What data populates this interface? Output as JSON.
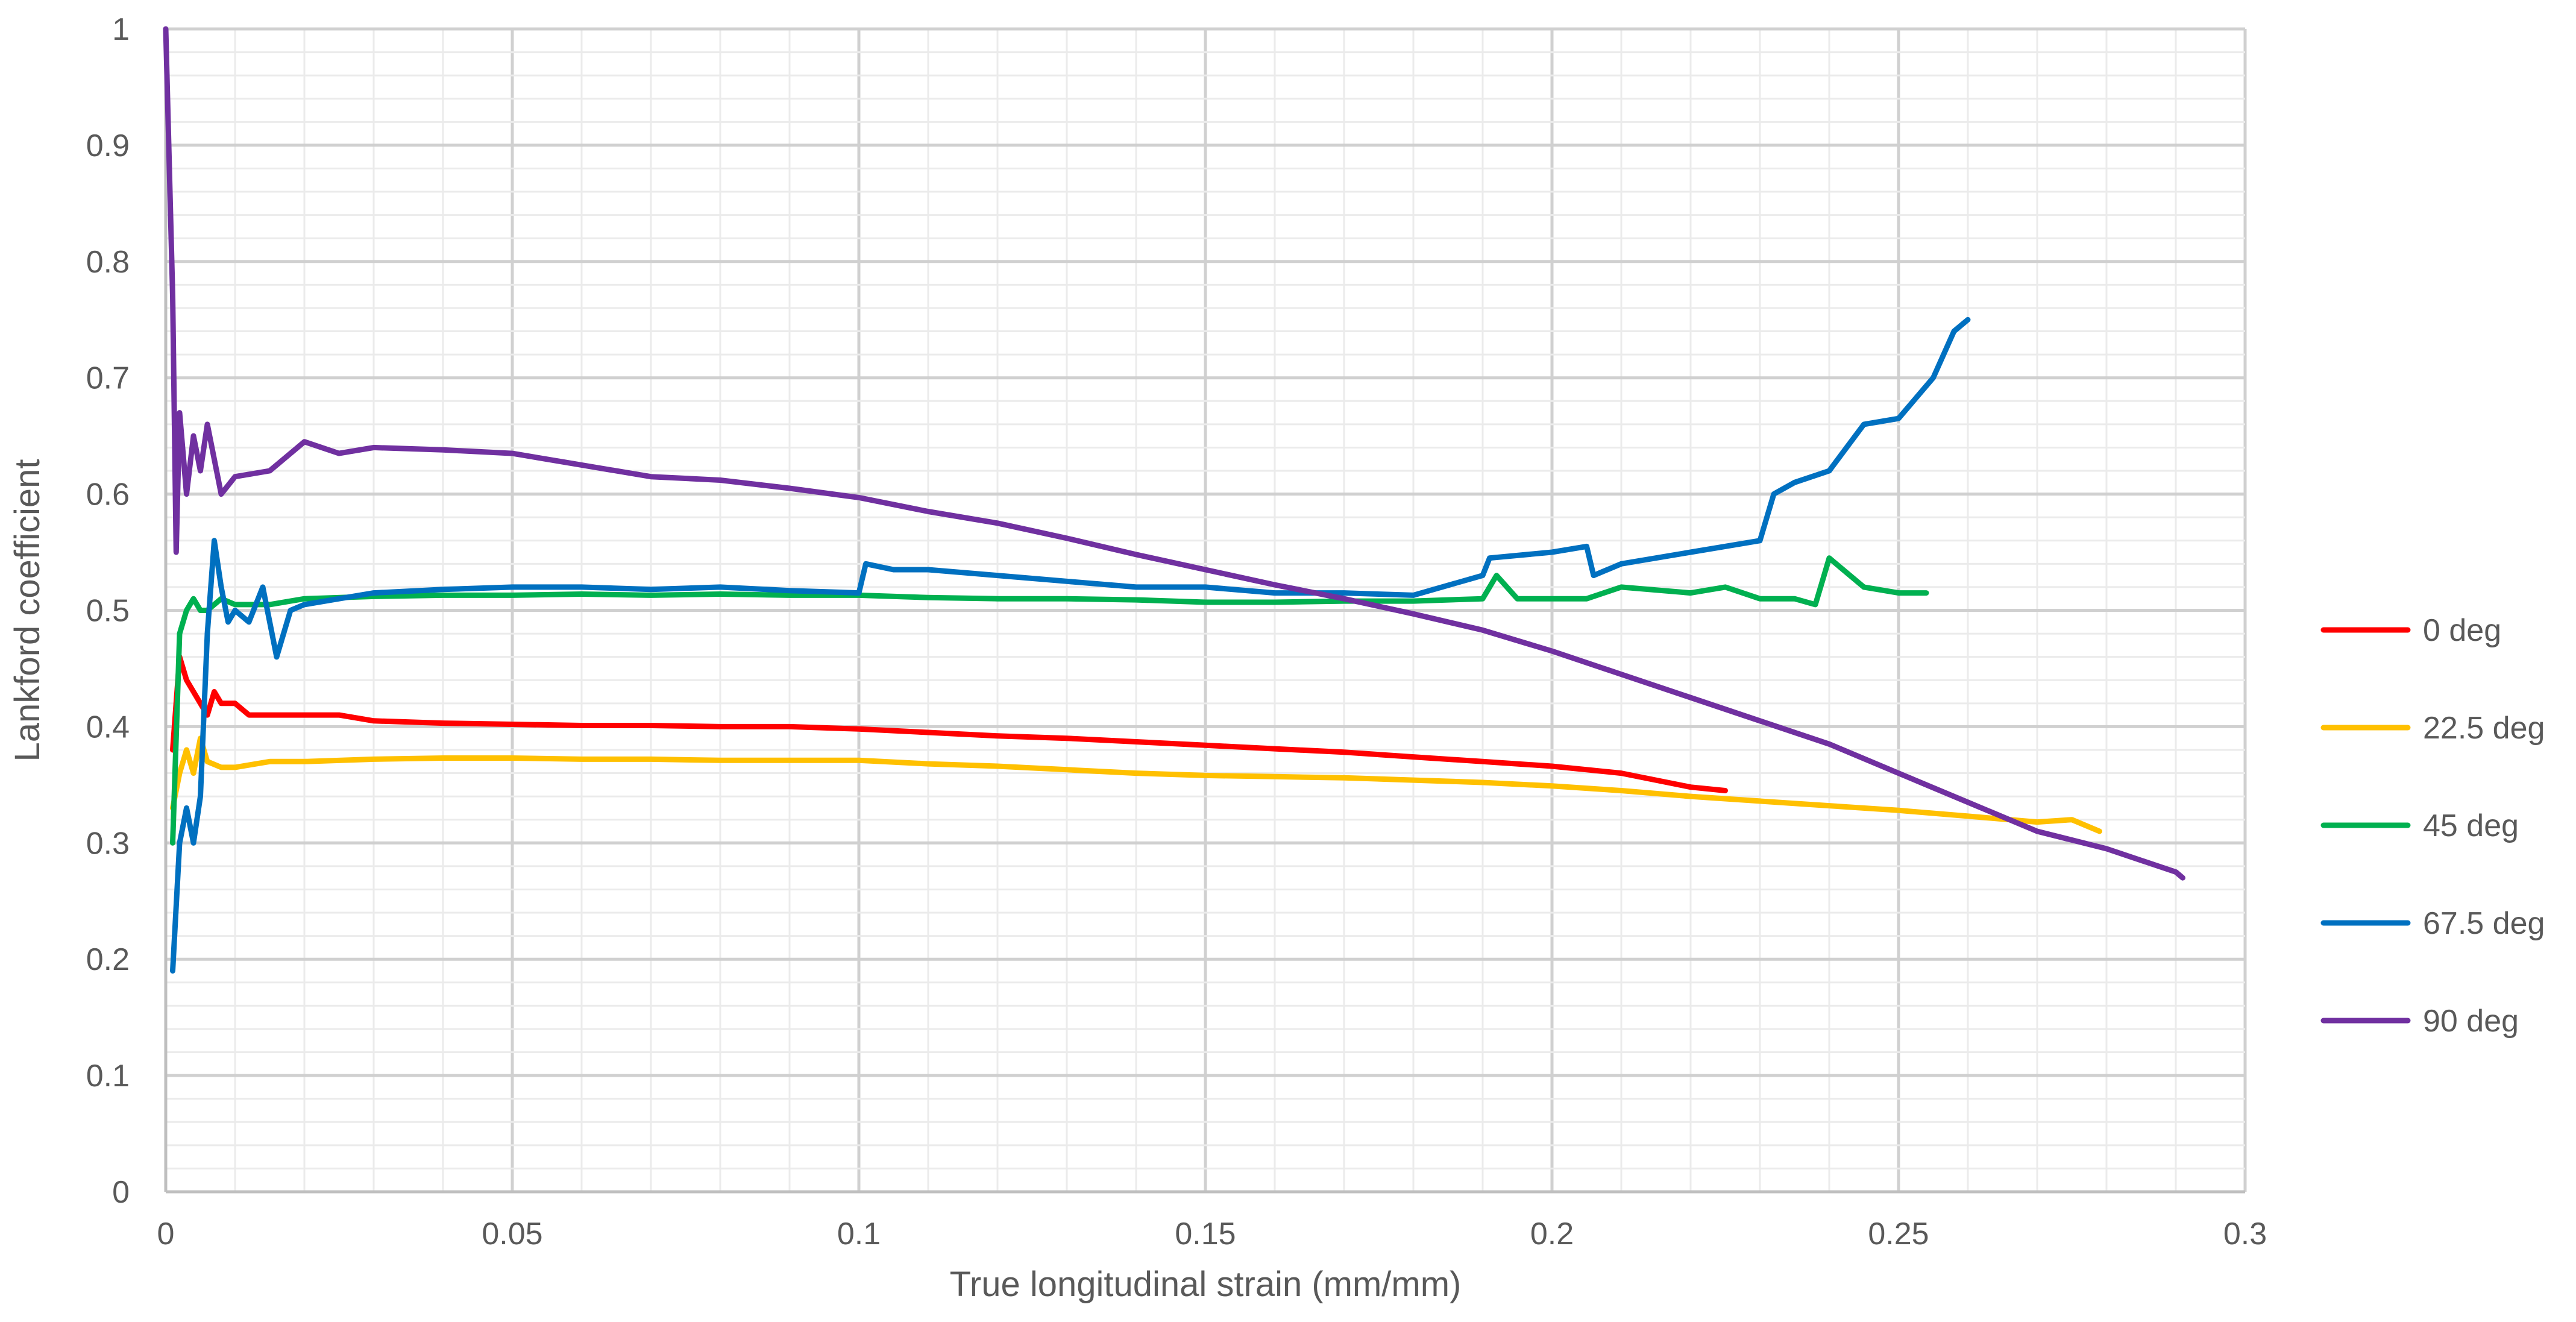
{
  "chart_data": {
    "type": "line",
    "title": "",
    "xlabel": "True longitudinal strain (mm/mm)",
    "ylabel": "Lankford coefficient",
    "xlim": [
      0,
      0.3
    ],
    "ylim": [
      0,
      1
    ],
    "x_ticks": [
      "0",
      "0.05",
      "0.1",
      "0.15",
      "0.2",
      "0.25",
      "0.3"
    ],
    "y_ticks": [
      "0",
      "0.1",
      "0.2",
      "0.3",
      "0.4",
      "0.5",
      "0.6",
      "0.7",
      "0.8",
      "0.9",
      "1"
    ],
    "grid": true,
    "legend_position": "right",
    "series": [
      {
        "name": "0 deg",
        "color": "#FF0000",
        "x": [
          0.001,
          0.002,
          0.003,
          0.004,
          0.005,
          0.006,
          0.007,
          0.008,
          0.01,
          0.012,
          0.015,
          0.02,
          0.025,
          0.03,
          0.04,
          0.05,
          0.06,
          0.07,
          0.08,
          0.09,
          0.1,
          0.11,
          0.12,
          0.13,
          0.14,
          0.15,
          0.16,
          0.17,
          0.18,
          0.19,
          0.2,
          0.21,
          0.22,
          0.225
        ],
        "y": [
          0.38,
          0.46,
          0.44,
          0.43,
          0.42,
          0.41,
          0.43,
          0.42,
          0.42,
          0.41,
          0.41,
          0.41,
          0.41,
          0.405,
          0.403,
          0.402,
          0.401,
          0.401,
          0.4,
          0.4,
          0.398,
          0.395,
          0.392,
          0.39,
          0.387,
          0.384,
          0.381,
          0.378,
          0.374,
          0.37,
          0.366,
          0.36,
          0.348,
          0.345
        ]
      },
      {
        "name": "22.5 deg",
        "color": "#FFC000",
        "x": [
          0.001,
          0.002,
          0.003,
          0.004,
          0.005,
          0.006,
          0.008,
          0.01,
          0.015,
          0.02,
          0.03,
          0.04,
          0.05,
          0.06,
          0.07,
          0.08,
          0.09,
          0.1,
          0.11,
          0.12,
          0.13,
          0.14,
          0.15,
          0.16,
          0.17,
          0.18,
          0.19,
          0.2,
          0.21,
          0.22,
          0.23,
          0.24,
          0.25,
          0.26,
          0.27,
          0.275,
          0.279
        ],
        "y": [
          0.33,
          0.36,
          0.38,
          0.36,
          0.39,
          0.37,
          0.365,
          0.365,
          0.37,
          0.37,
          0.372,
          0.373,
          0.373,
          0.372,
          0.372,
          0.371,
          0.371,
          0.371,
          0.368,
          0.366,
          0.363,
          0.36,
          0.358,
          0.357,
          0.356,
          0.354,
          0.352,
          0.349,
          0.345,
          0.34,
          0.336,
          0.332,
          0.328,
          0.323,
          0.318,
          0.32,
          0.31
        ]
      },
      {
        "name": "45 deg",
        "color": "#00B050",
        "x": [
          0.001,
          0.002,
          0.003,
          0.004,
          0.005,
          0.006,
          0.008,
          0.01,
          0.015,
          0.02,
          0.03,
          0.04,
          0.05,
          0.06,
          0.07,
          0.08,
          0.09,
          0.1,
          0.11,
          0.12,
          0.13,
          0.14,
          0.15,
          0.16,
          0.17,
          0.18,
          0.19,
          0.192,
          0.195,
          0.2,
          0.205,
          0.21,
          0.22,
          0.225,
          0.23,
          0.235,
          0.238,
          0.24,
          0.245,
          0.25,
          0.254
        ],
        "y": [
          0.3,
          0.48,
          0.5,
          0.51,
          0.5,
          0.5,
          0.51,
          0.505,
          0.505,
          0.51,
          0.512,
          0.513,
          0.513,
          0.514,
          0.513,
          0.514,
          0.513,
          0.513,
          0.511,
          0.51,
          0.51,
          0.509,
          0.507,
          0.507,
          0.508,
          0.508,
          0.51,
          0.53,
          0.51,
          0.51,
          0.51,
          0.52,
          0.515,
          0.52,
          0.51,
          0.51,
          0.505,
          0.545,
          0.52,
          0.515,
          0.515
        ]
      },
      {
        "name": "67.5 deg",
        "color": "#0070C0",
        "x": [
          0.001,
          0.002,
          0.003,
          0.004,
          0.005,
          0.006,
          0.007,
          0.008,
          0.009,
          0.01,
          0.012,
          0.014,
          0.016,
          0.018,
          0.02,
          0.025,
          0.03,
          0.04,
          0.05,
          0.06,
          0.07,
          0.08,
          0.09,
          0.1,
          0.101,
          0.105,
          0.11,
          0.12,
          0.13,
          0.14,
          0.15,
          0.16,
          0.17,
          0.18,
          0.19,
          0.191,
          0.2,
          0.205,
          0.206,
          0.21,
          0.22,
          0.23,
          0.232,
          0.235,
          0.24,
          0.245,
          0.25,
          0.255,
          0.258,
          0.26
        ],
        "y": [
          0.19,
          0.3,
          0.33,
          0.3,
          0.34,
          0.48,
          0.56,
          0.52,
          0.49,
          0.5,
          0.49,
          0.52,
          0.46,
          0.5,
          0.505,
          0.51,
          0.515,
          0.518,
          0.52,
          0.52,
          0.518,
          0.52,
          0.517,
          0.515,
          0.54,
          0.535,
          0.535,
          0.53,
          0.525,
          0.52,
          0.52,
          0.515,
          0.515,
          0.513,
          0.53,
          0.545,
          0.55,
          0.555,
          0.53,
          0.54,
          0.55,
          0.56,
          0.6,
          0.61,
          0.62,
          0.66,
          0.665,
          0.7,
          0.74,
          0.75
        ]
      },
      {
        "name": "90 deg",
        "color": "#7030A0",
        "x": [
          0.0,
          0.001,
          0.0015,
          0.002,
          0.003,
          0.004,
          0.005,
          0.006,
          0.008,
          0.01,
          0.015,
          0.02,
          0.025,
          0.03,
          0.04,
          0.05,
          0.06,
          0.07,
          0.08,
          0.09,
          0.1,
          0.11,
          0.12,
          0.13,
          0.14,
          0.15,
          0.16,
          0.17,
          0.18,
          0.19,
          0.2,
          0.21,
          0.22,
          0.23,
          0.24,
          0.25,
          0.26,
          0.27,
          0.28,
          0.29,
          0.291
        ],
        "y": [
          1.0,
          0.77,
          0.55,
          0.67,
          0.6,
          0.65,
          0.62,
          0.66,
          0.6,
          0.615,
          0.62,
          0.645,
          0.635,
          0.64,
          0.638,
          0.635,
          0.625,
          0.615,
          0.612,
          0.605,
          0.597,
          0.585,
          0.575,
          0.562,
          0.548,
          0.535,
          0.522,
          0.51,
          0.497,
          0.483,
          0.465,
          0.445,
          0.425,
          0.405,
          0.385,
          0.36,
          0.335,
          0.31,
          0.295,
          0.275,
          0.27
        ]
      }
    ]
  }
}
